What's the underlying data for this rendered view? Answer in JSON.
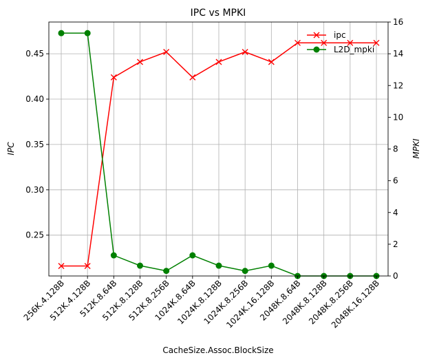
{
  "chart_data": {
    "type": "line",
    "title": "IPC vs MPKI",
    "xlabel": "CacheSize.Assoc.BlockSize",
    "ylabel_left": "IPC",
    "ylabel_right": "MPKI",
    "categories": [
      "256K.4.128B",
      "512K.4.128B",
      "512K.8.64B",
      "512K.8.128B",
      "512K.8.256B",
      "1024K.8.64B",
      "1024K.8.128B",
      "1024K.8.256B",
      "1024K.16.128B",
      "2048K.8.64B",
      "2048K.8.128B",
      "2048K.8.256B",
      "2048K.16.128B"
    ],
    "ylim_left": [
      0.205,
      0.485
    ],
    "ylim_right": [
      0,
      16
    ],
    "yticks_left": [
      "0.25",
      "0.30",
      "0.35",
      "0.40",
      "0.45"
    ],
    "yticks_right": [
      "0",
      "2",
      "4",
      "6",
      "8",
      "10",
      "12",
      "14",
      "16"
    ],
    "grid": true,
    "legend_position": "top-right",
    "series": [
      {
        "name": "ipc",
        "axis": "left",
        "color": "#ff0000",
        "marker": "x",
        "values": [
          0.216,
          0.216,
          0.424,
          0.441,
          0.452,
          0.424,
          0.441,
          0.452,
          0.441,
          0.462,
          0.462,
          0.462,
          0.462
        ]
      },
      {
        "name": "L2D_mpki",
        "axis": "right",
        "color": "#008000",
        "marker": "o",
        "values": [
          15.3,
          15.3,
          1.3,
          0.65,
          0.32,
          1.3,
          0.65,
          0.32,
          0.65,
          0.0,
          0.0,
          0.0,
          0.0
        ]
      }
    ]
  }
}
